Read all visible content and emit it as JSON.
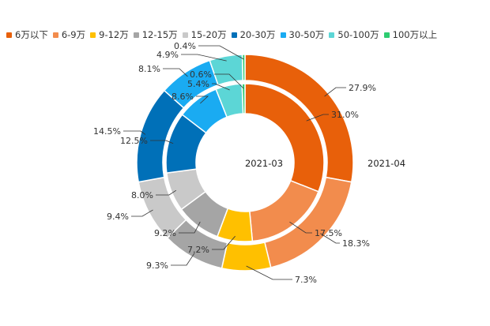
{
  "chart_data": {
    "type": "pie",
    "variant": "nested-donut",
    "categories": [
      "6万以下",
      "6-9万",
      "9-12万",
      "12-15万",
      "15-20万",
      "20-30万",
      "30-50万",
      "50-100万",
      "100万以上"
    ],
    "colors": [
      "#e8600a",
      "#f28c4d",
      "#ffc000",
      "#a5a5a5",
      "#c9c9c9",
      "#0070b8",
      "#1aabf2",
      "#5cd6d6",
      "#2ecc71"
    ],
    "series": [
      {
        "name": "2021-03",
        "ring": "inner",
        "values": [
          31.0,
          17.5,
          7.2,
          9.2,
          8.0,
          12.5,
          8.6,
          5.4,
          0.6
        ],
        "labels": [
          "31.0%",
          "17.5%",
          "7.2%",
          "9.2%",
          "8.0%",
          "12.5%",
          "8.6%",
          "5.4%",
          "0.6%"
        ]
      },
      {
        "name": "2021-04",
        "ring": "outer",
        "values": [
          27.9,
          18.3,
          7.3,
          9.3,
          9.4,
          14.5,
          8.1,
          4.9,
          0.4
        ],
        "labels": [
          "27.9%",
          "18.3%",
          "7.3%",
          "9.3%",
          "9.4%",
          "14.5%",
          "8.1%",
          "4.9%",
          "0.4%"
        ]
      }
    ],
    "legend_position": "top-left"
  }
}
